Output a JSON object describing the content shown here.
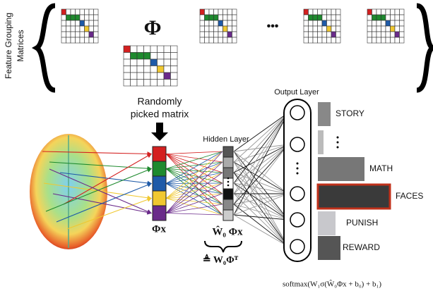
{
  "side_label": [
    "Feature Grouping",
    "Matrices"
  ],
  "phi_symbol": "Φ",
  "ellipsis": "•••",
  "caption": [
    "Randomly",
    "picked matrix"
  ],
  "hidden_layer": "Hidden Layer",
  "output_layer": "Output Layer",
  "classes": [
    "STORY",
    "MATH",
    "FACES",
    "PUNISH",
    "REWARD"
  ],
  "input_label": "Φx",
  "hidden_formula": "Ŵ₀ Φx",
  "definition": "≜ W₀Φᵀ",
  "formula": "softmax(W₁σ(Ŵ₀Φx + b₀) + b₁)"
}
